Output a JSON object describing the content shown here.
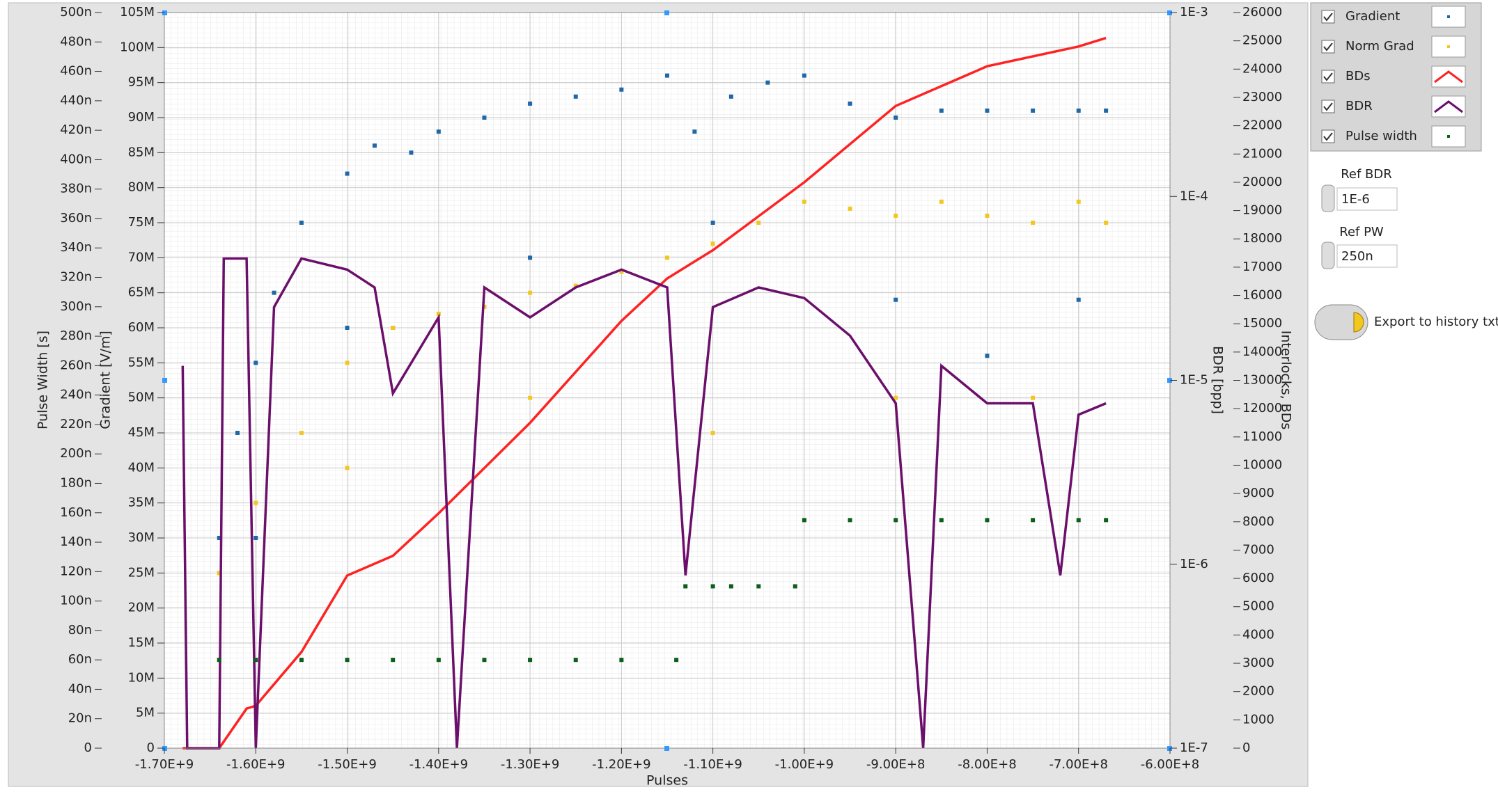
{
  "chart_data": {
    "type": "multi-axis",
    "x_label": "Pulses",
    "y_label": "Gradient [V/m]",
    "y2_label": "BDR [bpp]",
    "y3_label": "Interlocks, BDs",
    "y4_label": "Pulse Width [s]",
    "xlim": [
      -1700000000.0,
      -600000000.0
    ],
    "xticks": [
      {
        "value": -1700000000.0,
        "label": "-1.70E+9"
      },
      {
        "value": -1600000000.0,
        "label": "-1.60E+9"
      },
      {
        "value": -1500000000.0,
        "label": "-1.50E+9"
      },
      {
        "value": -1400000000.0,
        "label": "-1.40E+9"
      },
      {
        "value": -1300000000.0,
        "label": "-1.30E+9"
      },
      {
        "value": -1200000000.0,
        "label": "-1.20E+9"
      },
      {
        "value": -1100000000.0,
        "label": "-1.10E+9"
      },
      {
        "value": -1000000000.0,
        "label": "-1.00E+9"
      },
      {
        "value": -900000000.0,
        "label": "-9.00E+8"
      },
      {
        "value": -800000000.0,
        "label": "-8.00E+8"
      },
      {
        "value": -700000000.0,
        "label": "-7.00E+8"
      },
      {
        "value": -600000000.0,
        "label": "-6.00E+8"
      }
    ],
    "ylim": [
      0,
      105000000.0
    ],
    "yticks": [
      0,
      {
        "value": 5000000.0,
        "label": "5M"
      },
      {
        "value": 10000000.0,
        "label": "10M"
      },
      {
        "value": 15000000.0,
        "label": "15M"
      },
      {
        "value": 20000000.0,
        "label": "20M"
      },
      {
        "value": 25000000.0,
        "label": "25M"
      },
      {
        "value": 30000000.0,
        "label": "30M"
      },
      {
        "value": 35000000.0,
        "label": "35M"
      },
      {
        "value": 40000000.0,
        "label": "40M"
      },
      {
        "value": 45000000.0,
        "label": "45M"
      },
      {
        "value": 50000000.0,
        "label": "50M"
      },
      {
        "value": 55000000.0,
        "label": "55M"
      },
      {
        "value": 60000000.0,
        "label": "60M"
      },
      {
        "value": 65000000.0,
        "label": "65M"
      },
      {
        "value": 70000000.0,
        "label": "70M"
      },
      {
        "value": 75000000.0,
        "label": "75M"
      },
      {
        "value": 80000000.0,
        "label": "80M"
      },
      {
        "value": 85000000.0,
        "label": "85M"
      },
      {
        "value": 90000000.0,
        "label": "90M"
      },
      {
        "value": 95000000.0,
        "label": "95M"
      },
      {
        "value": 100000000.0,
        "label": "100M"
      },
      {
        "value": 105000000.0,
        "label": "105M"
      }
    ],
    "y2lim": [
      1e-07,
      0.001
    ],
    "y2scale": "log",
    "y2ticks": [
      {
        "value": 1e-07,
        "label": "1E-7"
      },
      {
        "value": 1e-06,
        "label": "1E-6"
      },
      {
        "value": 1e-05,
        "label": "1E-5"
      },
      {
        "value": 0.0001,
        "label": "1E-4"
      },
      {
        "value": 0.001,
        "label": "1E-3"
      }
    ],
    "y3lim": [
      0,
      26000
    ],
    "y3ticks": [
      0,
      1000,
      2000,
      3000,
      4000,
      5000,
      6000,
      7000,
      8000,
      9000,
      10000,
      11000,
      12000,
      13000,
      14000,
      15000,
      16000,
      17000,
      18000,
      19000,
      20000,
      21000,
      22000,
      23000,
      24000,
      25000,
      26000
    ],
    "y4lim": [
      0,
      5e-07
    ],
    "y4ticks": [
      0,
      {
        "value": 2e-08,
        "label": "20n"
      },
      {
        "value": 4e-08,
        "label": "40n"
      },
      {
        "value": 6e-08,
        "label": "60n"
      },
      {
        "value": 8e-08,
        "label": "80n"
      },
      {
        "value": 1e-07,
        "label": "100n"
      },
      {
        "value": 1.2e-07,
        "label": "120n"
      },
      {
        "value": 1.4e-07,
        "label": "140n"
      },
      {
        "value": 1.6e-07,
        "label": "160n"
      },
      {
        "value": 1.8e-07,
        "label": "180n"
      },
      {
        "value": 2e-07,
        "label": "200n"
      },
      {
        "value": 2.2e-07,
        "label": "220n"
      },
      {
        "value": 2.4e-07,
        "label": "240n"
      },
      {
        "value": 2.6e-07,
        "label": "260n"
      },
      {
        "value": 2.8e-07,
        "label": "280n"
      },
      {
        "value": 3e-07,
        "label": "300n"
      },
      {
        "value": 3.2e-07,
        "label": "320n"
      },
      {
        "value": 3.4e-07,
        "label": "340n"
      },
      {
        "value": 3.6e-07,
        "label": "360n"
      },
      {
        "value": 3.8e-07,
        "label": "380n"
      },
      {
        "value": 4e-07,
        "label": "400n"
      },
      {
        "value": 4.2e-07,
        "label": "420n"
      },
      {
        "value": 4.4e-07,
        "label": "440n"
      },
      {
        "value": 4.6e-07,
        "label": "460n"
      },
      {
        "value": 4.8e-07,
        "label": "480n"
      },
      {
        "value": 5e-07,
        "label": "500n"
      }
    ],
    "grid": true,
    "series": [
      {
        "name": "Gradient",
        "color": "#1f67a6",
        "style": "points",
        "axis": "y",
        "x": [
          -1640000000.0,
          -1620000000.0,
          -1600000000.0,
          -1580000000.0,
          -1550000000.0,
          -1500000000.0,
          -1470000000.0,
          -1450000000.0,
          -1430000000.0,
          -1400000000.0,
          -1350000000.0,
          -1300000000.0,
          -1250000000.0,
          -1200000000.0,
          -1150000000.0,
          -1120000000.0,
          -1080000000.0,
          -1040000000.0,
          -1000000000.0,
          -950000000.0,
          -900000000.0,
          -850000000.0,
          -800000000.0,
          -750000000.0,
          -700000000.0,
          -670000000.0,
          -1600000000.0,
          -1500000000.0,
          -1300000000.0,
          -1100000000.0,
          -900000000.0,
          -800000000.0,
          -700000000.0
        ],
        "values": [
          30000000.0,
          45000000.0,
          55000000.0,
          65000000.0,
          75000000.0,
          82000000.0,
          86000000.0,
          60000000.0,
          85000000.0,
          88000000.0,
          90000000.0,
          92000000.0,
          93000000.0,
          94000000.0,
          96000000.0,
          88000000.0,
          93000000.0,
          95000000.0,
          96000000.0,
          92000000.0,
          90000000.0,
          91000000.0,
          91000000.0,
          91000000.0,
          91000000.0,
          91000000.0,
          30000000.0,
          60000000.0,
          70000000.0,
          75000000.0,
          64000000.0,
          56000000.0,
          64000000.0
        ]
      },
      {
        "name": "Norm Grad",
        "color": "#f2c81e",
        "style": "points",
        "axis": "y",
        "x": [
          -1640000000.0,
          -1600000000.0,
          -1550000000.0,
          -1500000000.0,
          -1450000000.0,
          -1400000000.0,
          -1350000000.0,
          -1300000000.0,
          -1250000000.0,
          -1200000000.0,
          -1150000000.0,
          -1100000000.0,
          -1050000000.0,
          -1000000000.0,
          -950000000.0,
          -900000000.0,
          -850000000.0,
          -800000000.0,
          -750000000.0,
          -700000000.0,
          -670000000.0,
          -1500000000.0,
          -1300000000.0,
          -1100000000.0,
          -900000000.0,
          -750000000.0
        ],
        "values": [
          25000000.0,
          35000000.0,
          45000000.0,
          55000000.0,
          60000000.0,
          62000000.0,
          63000000.0,
          65000000.0,
          66000000.0,
          68000000.0,
          70000000.0,
          72000000.0,
          75000000.0,
          78000000.0,
          77000000.0,
          76000000.0,
          78000000.0,
          76000000.0,
          75000000.0,
          78000000.0,
          75000000.0,
          40000000.0,
          50000000.0,
          45000000.0,
          50000000.0,
          50000000.0
        ]
      },
      {
        "name": "BDs",
        "color": "#ff2222",
        "style": "line",
        "axis": "y3",
        "x": [
          -1680000000.0,
          -1640000000.0,
          -1610000000.0,
          -1600000000.0,
          -1550000000.0,
          -1500000000.0,
          -1450000000.0,
          -1400000000.0,
          -1300000000.0,
          -1200000000.0,
          -1150000000.0,
          -1100000000.0,
          -1000000000.0,
          -900000000.0,
          -800000000.0,
          -700000000.0,
          -670000000.0
        ],
        "values": [
          0,
          0,
          1400,
          1500,
          3400,
          6100,
          6800,
          8300,
          11500,
          15100,
          16600,
          17600,
          20000,
          22700,
          24100,
          24800,
          25100
        ]
      },
      {
        "name": "BDR",
        "color": "#6b0f6b",
        "style": "line",
        "axis": "y2",
        "x": [
          -1680000000.0,
          -1675000000.0,
          -1640000000.0,
          -1635000000.0,
          -1610000000.0,
          -1600000000.0,
          -1580000000.0,
          -1550000000.0,
          -1500000000.0,
          -1470000000.0,
          -1450000000.0,
          -1400000000.0,
          -1380000000.0,
          -1350000000.0,
          -1300000000.0,
          -1250000000.0,
          -1200000000.0,
          -1150000000.0,
          -1130000000.0,
          -1100000000.0,
          -1050000000.0,
          -1000000000.0,
          -950000000.0,
          -900000000.0,
          -870000000.0,
          -850000000.0,
          -800000000.0,
          -750000000.0,
          -720000000.0,
          -700000000.0,
          -670000000.0
        ],
        "values": [
          1.2e-05,
          1e-07,
          1e-07,
          4.6e-05,
          4.6e-05,
          1e-07,
          2.5e-05,
          4.6e-05,
          4e-05,
          3.2e-05,
          8.5e-06,
          2.2e-05,
          1e-07,
          3.2e-05,
          2.2e-05,
          3.2e-05,
          4e-05,
          3.2e-05,
          8.7e-07,
          2.5e-05,
          3.2e-05,
          2.8e-05,
          1.75e-05,
          7.5e-06,
          1e-07,
          1.2e-05,
          7.5e-06,
          7.5e-06,
          8.7e-07,
          6.5e-06,
          7.5e-06
        ]
      },
      {
        "name": "Pulse width",
        "color": "#0d5e1a",
        "style": "points",
        "axis": "y4",
        "x": [
          -1640000000.0,
          -1600000000.0,
          -1550000000.0,
          -1500000000.0,
          -1450000000.0,
          -1400000000.0,
          -1350000000.0,
          -1300000000.0,
          -1250000000.0,
          -1200000000.0,
          -1140000000.0,
          -1130000000.0,
          -1100000000.0,
          -1080000000.0,
          -1050000000.0,
          -1010000000.0,
          -1000000000.0,
          -950000000.0,
          -900000000.0,
          -850000000.0,
          -800000000.0,
          -750000000.0,
          -700000000.0,
          -670000000.0
        ],
        "values": [
          6e-08,
          6e-08,
          6e-08,
          6e-08,
          6e-08,
          6e-08,
          6e-08,
          6e-08,
          6e-08,
          6e-08,
          6e-08,
          1.1e-07,
          1.1e-07,
          1.1e-07,
          1.1e-07,
          1.1e-07,
          1.55e-07,
          1.55e-07,
          1.55e-07,
          1.55e-07,
          1.55e-07,
          1.55e-07,
          1.55e-07,
          1.55e-07
        ]
      }
    ]
  },
  "controls": {
    "ref_bdr": {
      "label": "Ref BDR",
      "value": "1E-6"
    },
    "ref_pw": {
      "label": "Ref PW",
      "value": "250n"
    },
    "export_button": {
      "label": "Export to history txt"
    }
  }
}
